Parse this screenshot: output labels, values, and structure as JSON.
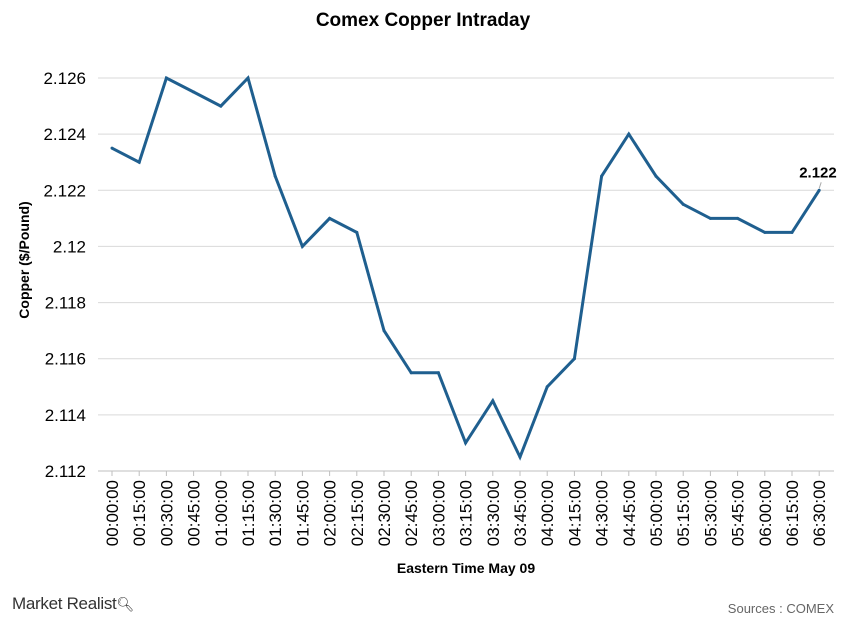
{
  "chart_data": {
    "type": "line",
    "title": "Comex Copper Intraday",
    "xlabel": "Eastern Time May 09",
    "ylabel": "Copper ($/Pound)",
    "ylim": [
      2.112,
      2.126
    ],
    "yticks": [
      "2.112",
      "2.114",
      "2.116",
      "2.118",
      "2.12",
      "2.122",
      "2.124",
      "2.126"
    ],
    "ytick_values": [
      2.112,
      2.114,
      2.116,
      2.118,
      2.12,
      2.122,
      2.124,
      2.126
    ],
    "grid": true,
    "line_color": "#1f5f8f",
    "categories": [
      "00:00:00",
      "00:15:00",
      "00:30:00",
      "00:45:00",
      "01:00:00",
      "01:15:00",
      "01:30:00",
      "01:45:00",
      "02:00:00",
      "02:15:00",
      "02:30:00",
      "02:45:00",
      "03:00:00",
      "03:15:00",
      "03:30:00",
      "03:45:00",
      "04:00:00",
      "04:15:00",
      "04:30:00",
      "04:45:00",
      "05:00:00",
      "05:15:00",
      "05:30:00",
      "05:45:00",
      "06:00:00",
      "06:15:00",
      "06:30:00"
    ],
    "series": [
      {
        "values": [
          2.1235,
          2.123,
          2.126,
          2.1255,
          2.125,
          2.126,
          2.1225,
          2.12,
          2.121,
          2.1205,
          2.117,
          2.1155,
          2.1155,
          2.113,
          2.1145,
          2.1125,
          2.115,
          2.116,
          2.1225,
          2.124,
          2.1225,
          2.1215,
          2.121,
          2.121,
          2.1205,
          2.1205,
          2.122
        ]
      }
    ],
    "last_label": "2.122"
  },
  "footer": {
    "logo_text": "Market Realist",
    "logo_icon": "magnifier-icon",
    "source": "Sources : COMEX"
  }
}
